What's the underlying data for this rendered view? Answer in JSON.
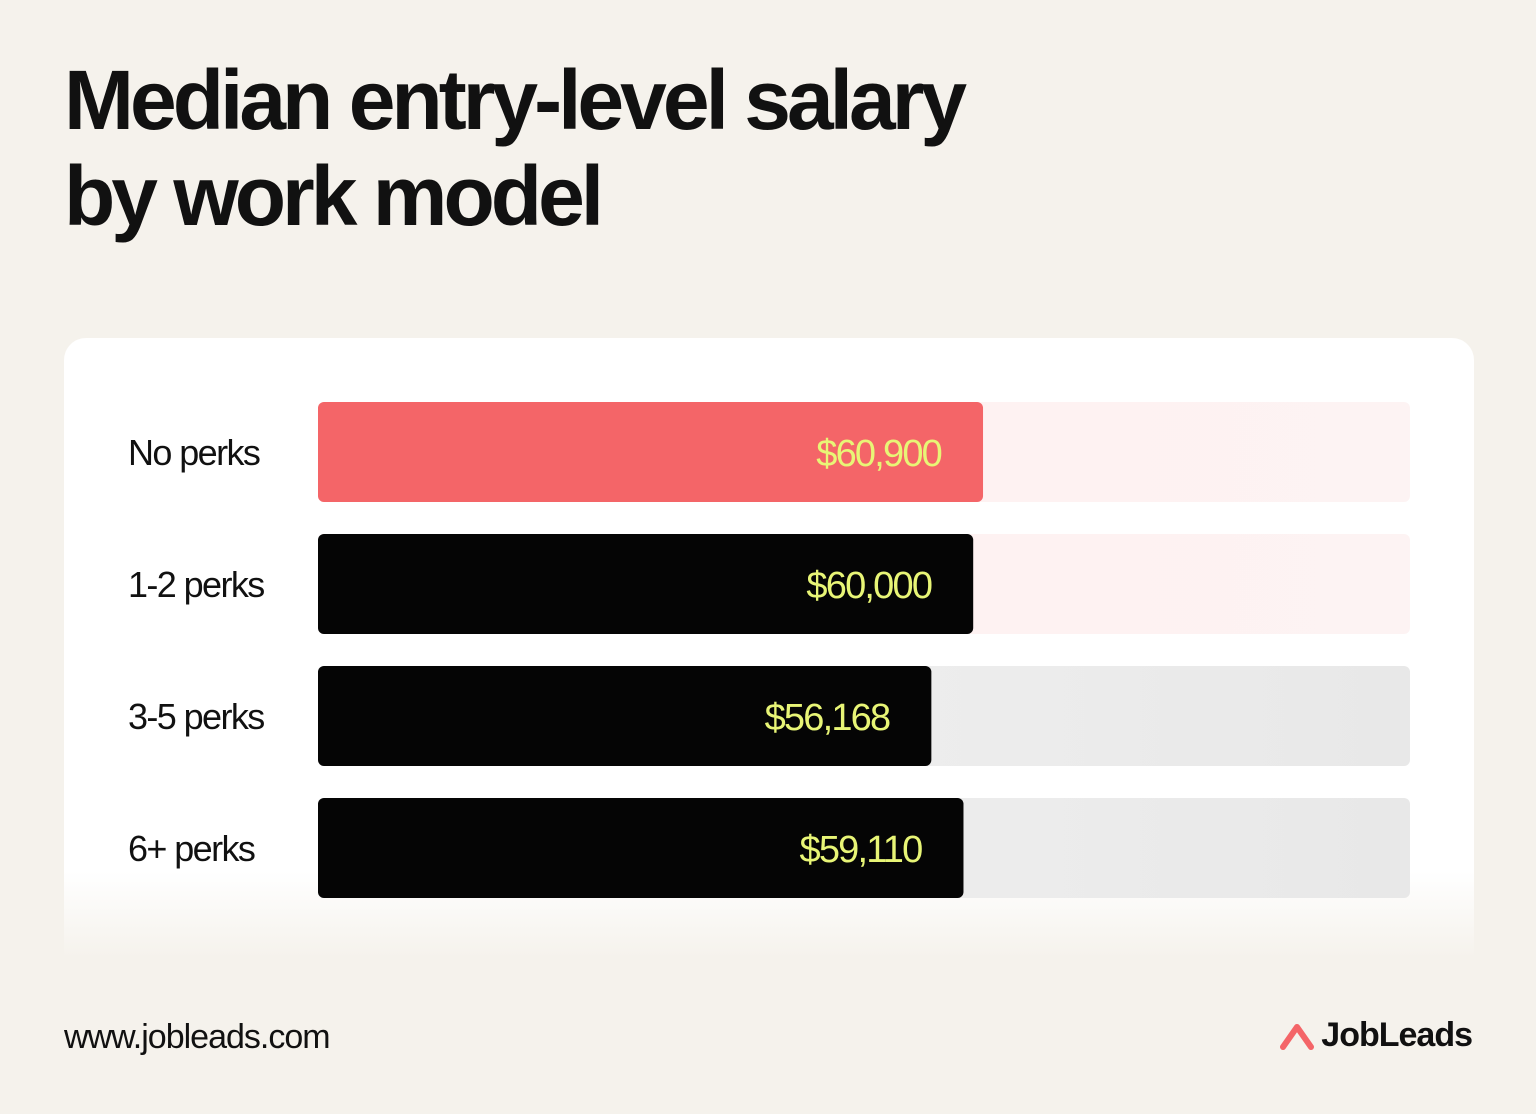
{
  "title_lines": [
    "Median entry-level salary",
    "by work model"
  ],
  "footer": {
    "url": "www.jobleads.com",
    "brand": "JobLeads",
    "brand_icon": "jobleads-logo-icon"
  },
  "colors": {
    "highlight_bar": "#f46568",
    "default_bar": "#050505",
    "value_text": "#e8f576",
    "brand_accent": "#f46568"
  },
  "chart_data": {
    "type": "bar",
    "orientation": "horizontal",
    "title": "Median entry-level salary by work model",
    "categories": [
      "No perks",
      "1-2 perks",
      "3-5 perks",
      "6+ perks"
    ],
    "values": [
      60900,
      60000,
      56168,
      59110
    ],
    "value_labels": [
      "$60,900",
      "$60,000",
      "$56,168",
      "$59,110"
    ],
    "highlight_index": 0,
    "xlim": [
      0,
      100000
    ],
    "grid": false,
    "legend": "none"
  }
}
